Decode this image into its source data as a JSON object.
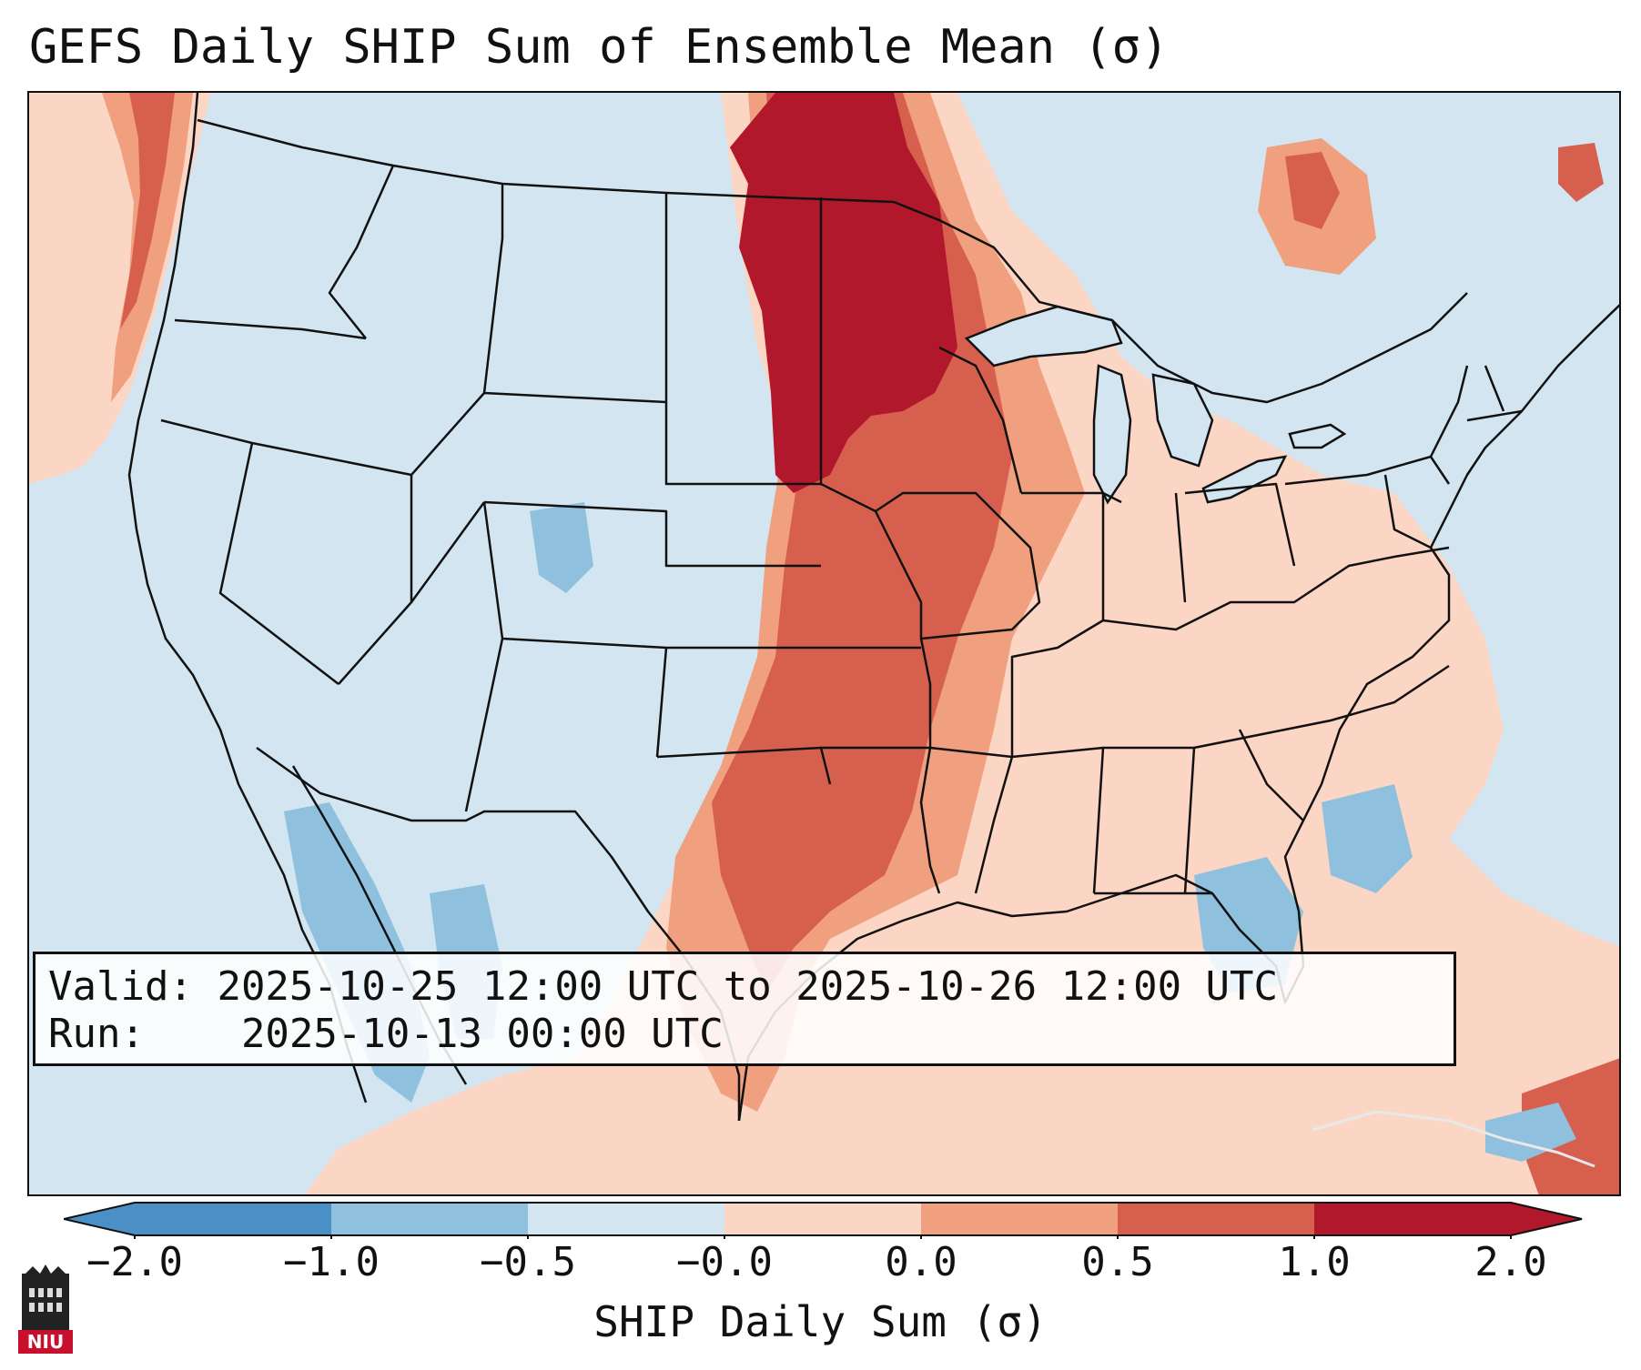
{
  "title": "GEFS Daily SHIP Sum of Ensemble Mean (σ)",
  "info": {
    "valid_label": "Valid:",
    "valid_value": "2025-10-25 12:00 UTC to 2025-10-26 12:00 UTC",
    "run_label": "Run:",
    "run_value": "2025-10-13 00:00 UTC"
  },
  "colorbar": {
    "label": "SHIP Daily Sum (σ)",
    "ticks": [
      "−2.0",
      "−1.0",
      "−0.5",
      "−0.0",
      "0.0",
      "0.5",
      "1.0",
      "2.0"
    ],
    "colors": [
      "#4a90c6",
      "#8fc1de",
      "#d3e5f0",
      "#ffffff",
      "#fcd6c4",
      "#f0a07e",
      "#d6604d",
      "#b2182b"
    ]
  },
  "map": {
    "colors": {
      "background": "#d3e5f0",
      "very_high": "#b2182b",
      "high": "#d6604d",
      "moderate": "#f0a07e",
      "slight": "#fcd6c4",
      "slight_low": "#8fc1de"
    }
  },
  "logo": {
    "text": "NIU",
    "color": "#c8102e"
  }
}
